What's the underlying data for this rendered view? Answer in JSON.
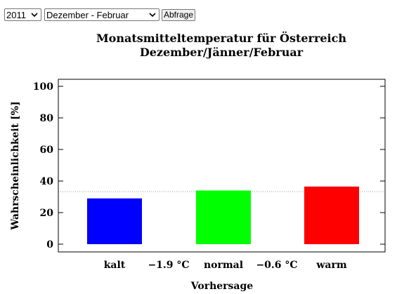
{
  "controls": {
    "year_selected": "2011",
    "season_selected": "Dezember - Februar",
    "query_button_label": "Abfrage"
  },
  "chart_data": {
    "type": "bar",
    "title_line1": "Monatsmitteltemperatur für Österreich",
    "title_line2": "Dezember/Jänner/Februar",
    "xlabel": "Vorhersage",
    "ylabel": "Wahrscheinlichkeit [%]",
    "ylim": [
      0,
      100
    ],
    "yticks": [
      0,
      20,
      40,
      60,
      80,
      100
    ],
    "categories": [
      "kalt",
      "normal",
      "warm"
    ],
    "values": [
      29,
      34,
      36.5
    ],
    "bar_colors": [
      "#0000ff",
      "#00ff00",
      "#ff0000"
    ],
    "thresholds": [
      "−1.9 °C",
      "−0.6 °C"
    ],
    "reference_line": 33.3,
    "grid": false
  }
}
